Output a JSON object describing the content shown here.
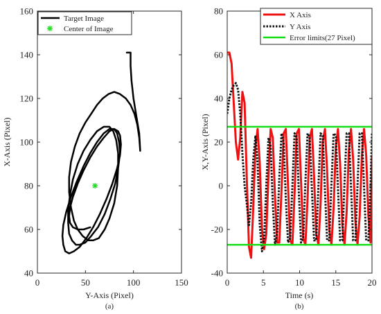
{
  "chart_data": [
    {
      "type": "line",
      "panel_label": "(a)",
      "xlabel": "Y-Axis (Pixel)",
      "ylabel": "X-Axis (Pixel)",
      "xlim": [
        0,
        150
      ],
      "ylim": [
        40,
        160
      ],
      "xticks": [
        0,
        50,
        100,
        150
      ],
      "yticks": [
        40,
        60,
        80,
        100,
        120,
        140,
        160
      ],
      "grid": false,
      "legend_position": "top-left",
      "series": [
        {
          "name": "Target Image",
          "color": "#000000",
          "style": "solid",
          "x": [
            93,
            97,
            97,
            98,
            100,
            103,
            106,
            107,
            106,
            104,
            101,
            97,
            92,
            86,
            80,
            74,
            68,
            62,
            56,
            50,
            44,
            39,
            35,
            33,
            33,
            35,
            38,
            42,
            47,
            53,
            58,
            64,
            70,
            75,
            80,
            83,
            84,
            84,
            82,
            79,
            75,
            69,
            62,
            55,
            48,
            42,
            37,
            34,
            32,
            32,
            33,
            36,
            40,
            44,
            50,
            56,
            63,
            70,
            76,
            81,
            84,
            86,
            85,
            83,
            80,
            75,
            69,
            62,
            55,
            48,
            41,
            35,
            30,
            27,
            26,
            27,
            29,
            33,
            38,
            44,
            51,
            58,
            65,
            72,
            78,
            83,
            86,
            87,
            86,
            84,
            80,
            75,
            69,
            62,
            55,
            48,
            42,
            37,
            34,
            33,
            34,
            37,
            42,
            48,
            55
          ],
          "y": [
            141,
            141,
            135,
            128,
            120,
            112,
            104,
            96,
            102,
            108,
            113,
            117,
            120,
            122,
            123,
            122,
            120,
            117,
            113,
            109,
            104,
            98,
            91,
            84,
            77,
            70,
            64,
            60,
            57,
            55,
            55,
            56,
            60,
            65,
            72,
            80,
            88,
            95,
            101,
            105,
            107,
            107,
            105,
            101,
            96,
            90,
            83,
            76,
            69,
            63,
            58,
            55,
            53,
            53,
            54,
            57,
            61,
            67,
            74,
            81,
            88,
            95,
            100,
            104,
            106,
            106,
            104,
            100,
            95,
            89,
            82,
            75,
            68,
            62,
            57,
            53,
            50,
            49,
            50,
            52,
            56,
            61,
            67,
            74,
            81,
            88,
            94,
            99,
            103,
            105,
            106,
            105,
            102,
            98,
            93,
            87,
            81,
            75,
            70,
            66,
            63,
            61,
            60,
            60,
            61
          ]
        },
        {
          "name": "Center of Image",
          "color": "#22dd22",
          "style": "marker",
          "marker": "asterisk",
          "x": [
            60
          ],
          "y": [
            80
          ]
        }
      ]
    },
    {
      "type": "line",
      "panel_label": "(b)",
      "xlabel": "Time (s)",
      "ylabel": "X,Y-Axis (Pixel)",
      "xlim": [
        0,
        20
      ],
      "ylim": [
        -40,
        80
      ],
      "xticks": [
        0,
        5,
        10,
        15,
        20
      ],
      "yticks": [
        -40,
        -20,
        0,
        20,
        40,
        60,
        80
      ],
      "grid": false,
      "legend_position": "top-right",
      "series": [
        {
          "name": "X Axis",
          "color": "#ee1111",
          "style": "solid",
          "x": [
            0,
            0.3,
            0.6,
            0.9,
            1.2,
            1.5,
            1.8,
            2.1,
            2.4,
            2.7,
            3.0,
            3.3,
            3.6,
            3.9,
            4.2,
            4.5,
            4.8,
            5.1,
            5.4,
            5.7,
            6.0,
            6.3,
            6.6,
            6.9,
            7.2,
            7.5,
            7.8,
            8.1,
            8.4,
            8.7,
            9.0,
            9.3,
            9.6,
            9.9,
            10.2,
            10.5,
            10.8,
            11.1,
            11.4,
            11.7,
            12.0,
            12.3,
            12.6,
            12.9,
            13.2,
            13.5,
            13.8,
            14.1,
            14.4,
            14.7,
            15.0,
            15.3,
            15.6,
            15.9,
            16.2,
            16.5,
            16.8,
            17.1,
            17.4,
            17.7,
            18.0,
            18.3,
            18.6,
            18.9,
            19.2,
            19.5,
            19.8,
            20.0
          ],
          "y": [
            61,
            61,
            56,
            38,
            20,
            12,
            22,
            43,
            38,
            4,
            -28,
            -33,
            -10,
            18,
            26,
            10,
            -20,
            -29,
            -22,
            5,
            26,
            22,
            -5,
            -26,
            -26,
            -2,
            24,
            26,
            0,
            -25,
            -27,
            -4,
            24,
            26,
            2,
            -24,
            -27,
            -6,
            22,
            26,
            4,
            -22,
            -27,
            -8,
            20,
            26,
            7,
            -20,
            -27,
            -10,
            18,
            26,
            10,
            -18,
            -27,
            -12,
            16,
            26,
            12,
            -16,
            -27,
            -14,
            14,
            26,
            14,
            -14,
            -26,
            13
          ]
        },
        {
          "name": "Y Axis",
          "color": "#111111",
          "style": "dotted",
          "x": [
            0,
            0.3,
            0.6,
            0.9,
            1.2,
            1.5,
            1.8,
            2.1,
            2.4,
            2.7,
            3.0,
            3.3,
            3.6,
            3.9,
            4.2,
            4.5,
            4.8,
            5.1,
            5.4,
            5.7,
            6.0,
            6.3,
            6.6,
            6.9,
            7.2,
            7.5,
            7.8,
            8.1,
            8.4,
            8.7,
            9.0,
            9.3,
            9.6,
            9.9,
            10.2,
            10.5,
            10.8,
            11.1,
            11.4,
            11.7,
            12.0,
            12.3,
            12.6,
            12.9,
            13.2,
            13.5,
            13.8,
            14.1,
            14.4,
            14.7,
            15.0,
            15.3,
            15.6,
            15.9,
            16.2,
            16.5,
            16.8,
            17.1,
            17.4,
            17.7,
            18.0,
            18.3,
            18.6,
            18.9,
            19.2,
            19.5,
            19.8,
            20.0
          ],
          "y": [
            33,
            40,
            44,
            46,
            47,
            44,
            33,
            15,
            0,
            -8,
            -18,
            -8,
            12,
            23,
            10,
            -18,
            -30,
            -24,
            0,
            22,
            18,
            -8,
            -27,
            -22,
            4,
            24,
            20,
            -6,
            -26,
            -24,
            0,
            24,
            22,
            -4,
            -26,
            -24,
            2,
            24,
            22,
            -2,
            -25,
            -25,
            0,
            24,
            23,
            -2,
            -25,
            -25,
            1,
            24,
            23,
            -1,
            -25,
            -25,
            1,
            24,
            24,
            0,
            -25,
            -25,
            0,
            24,
            24,
            0,
            -25,
            -25,
            0,
            24
          ]
        },
        {
          "name": "Error limits(27 Pixel)",
          "color": "#11dd11",
          "style": "solid",
          "x": [
            0,
            20
          ],
          "y": [
            27,
            27
          ]
        },
        {
          "name": "",
          "color": "#11dd11",
          "style": "solid",
          "x": [
            0,
            20
          ],
          "y": [
            -27,
            -27
          ]
        }
      ]
    }
  ]
}
